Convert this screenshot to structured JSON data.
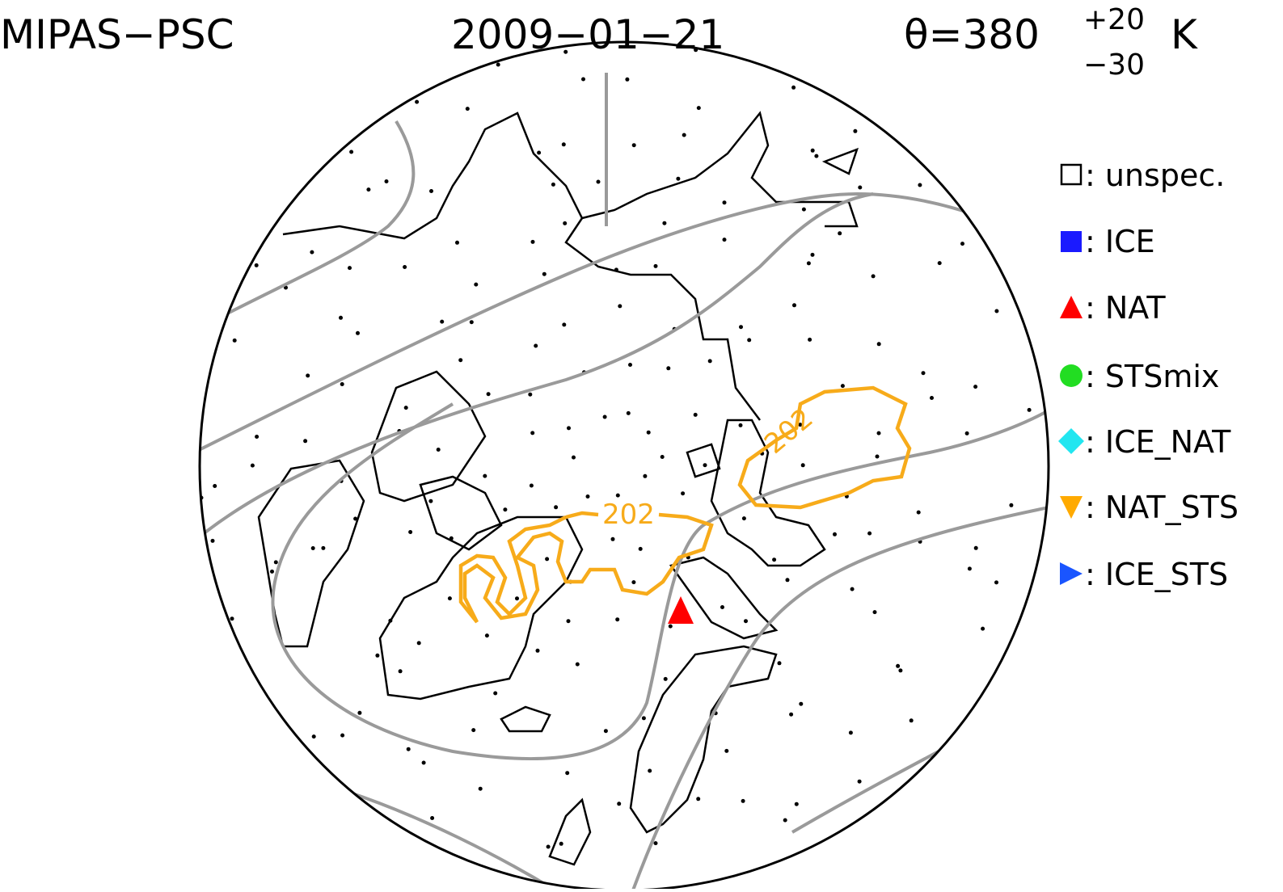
{
  "header": {
    "instrument": "MIPAS−PSC",
    "date": "2009−01−21",
    "theta": "θ=380",
    "theta_upper": "+20",
    "theta_lower": "−30",
    "unit": "K"
  },
  "legend": [
    {
      "label": ": unspec."
    },
    {
      "label": ": ICE"
    },
    {
      "label": ": NAT"
    },
    {
      "label": ": STSmix"
    },
    {
      "label": ": ICE_NAT"
    },
    {
      "label": ": NAT_STS"
    },
    {
      "label": ": ICE_STS"
    }
  ],
  "contour_labels": [
    "202",
    "202"
  ]
}
